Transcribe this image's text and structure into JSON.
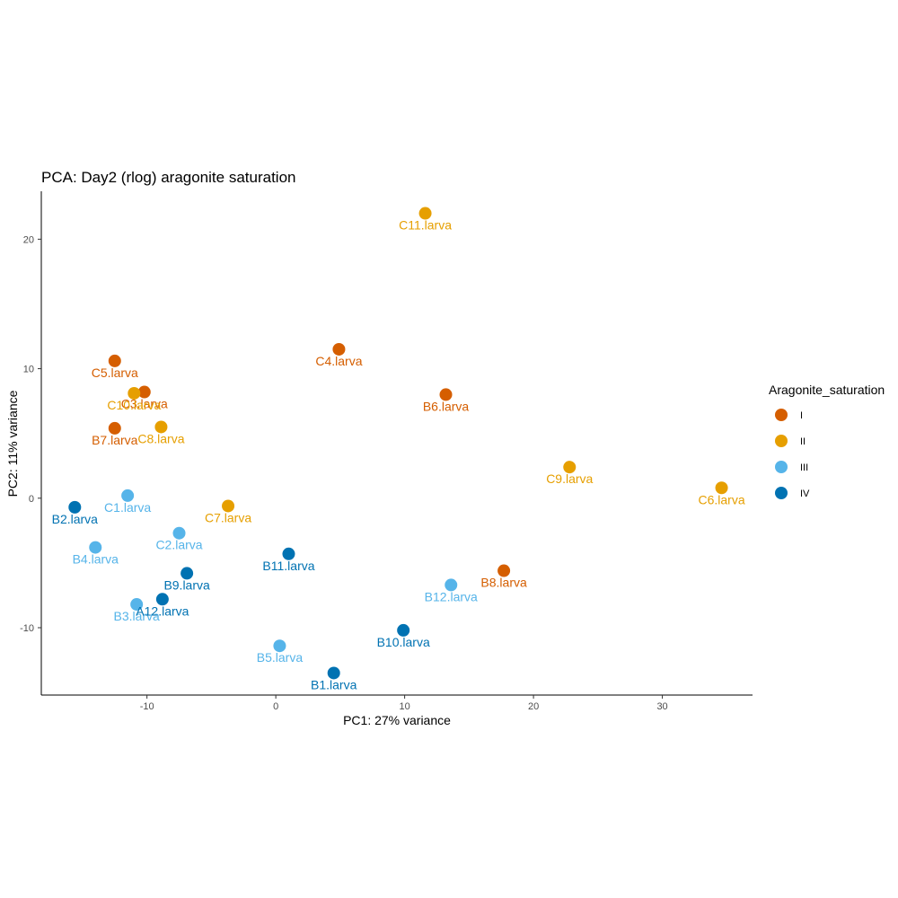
{
  "chart_data": {
    "type": "scatter",
    "title": "PCA: Day2 (rlog) aragonite saturation",
    "xlabel": "PC1: 27% variance",
    "ylabel": "PC2: 11% variance",
    "xlim": [
      -18.2,
      37
    ],
    "ylim": [
      -15.2,
      23.7
    ],
    "x_ticks": [
      -10,
      0,
      10,
      20,
      30
    ],
    "y_ticks": [
      -10,
      0,
      10,
      20
    ],
    "grid": false,
    "legend": {
      "title": "Aragonite_saturation",
      "position": "right",
      "entries": [
        {
          "label": "I",
          "color": "#d55e00"
        },
        {
          "label": "II",
          "color": "#e69f00"
        },
        {
          "label": "III",
          "color": "#56b4e9"
        },
        {
          "label": "IV",
          "color": "#0072b2"
        }
      ]
    },
    "series": [
      {
        "name": "I",
        "color": "#d55e00",
        "points": [
          {
            "label": "C5.larva",
            "x": -12.5,
            "y": 10.6
          },
          {
            "label": "C3.larva",
            "x": -10.2,
            "y": 8.2
          },
          {
            "label": "C4.larva",
            "x": 4.9,
            "y": 11.5
          },
          {
            "label": "B6.larva",
            "x": 13.2,
            "y": 8.0
          },
          {
            "label": "B7.larva",
            "x": -12.5,
            "y": 5.4
          },
          {
            "label": "B8.larva",
            "x": 17.7,
            "y": -5.6
          }
        ]
      },
      {
        "name": "II",
        "color": "#e69f00",
        "points": [
          {
            "label": "C11.larva",
            "x": 11.6,
            "y": 22.0
          },
          {
            "label": "C10.larva",
            "x": -11.0,
            "y": 8.1
          },
          {
            "label": "C8.larva",
            "x": -8.9,
            "y": 5.5
          },
          {
            "label": "C9.larva",
            "x": 22.8,
            "y": 2.4
          },
          {
            "label": "C6.larva",
            "x": 34.6,
            "y": 0.8
          },
          {
            "label": "C7.larva",
            "x": -3.7,
            "y": -0.6
          }
        ]
      },
      {
        "name": "III",
        "color": "#56b4e9",
        "points": [
          {
            "label": "C1.larva",
            "x": -11.5,
            "y": 0.2
          },
          {
            "label": "B4.larva",
            "x": -14.0,
            "y": -3.8
          },
          {
            "label": "C2.larva",
            "x": -7.5,
            "y": -2.7
          },
          {
            "label": "B3.larva",
            "x": -10.8,
            "y": -8.2
          },
          {
            "label": "B5.larva",
            "x": 0.3,
            "y": -11.4
          },
          {
            "label": "B12.larva",
            "x": 13.6,
            "y": -6.7
          }
        ]
      },
      {
        "name": "IV",
        "color": "#0072b2",
        "points": [
          {
            "label": "B2.larva",
            "x": -15.6,
            "y": -0.7
          },
          {
            "label": "B11.larva",
            "x": 1.0,
            "y": -4.3
          },
          {
            "label": "B9.larva",
            "x": -6.9,
            "y": -5.8
          },
          {
            "label": "A12.larva",
            "x": -8.8,
            "y": -7.8
          },
          {
            "label": "B10.larva",
            "x": 9.9,
            "y": -10.2
          },
          {
            "label": "B1.larva",
            "x": 4.5,
            "y": -13.5
          }
        ]
      }
    ]
  }
}
